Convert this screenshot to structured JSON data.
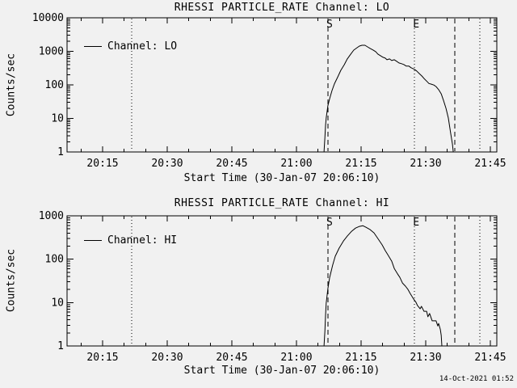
{
  "window": {
    "description": "RHESSI particle rate quicklook plot, two stacked log-scale time series panels"
  },
  "colors": {
    "background": "#f1f1f1",
    "foreground": "#000000"
  },
  "footer": {
    "timestamp": "14-Oct-2021 01:52"
  },
  "chart_data": [
    {
      "type": "line",
      "title": "RHESSI PARTICLE_RATE Channel: LO",
      "legend_label": "Channel: LO",
      "xlabel": "Start Time (30-Jan-07 20:06:10)",
      "ylabel": "Counts/sec",
      "x_unit": "minutes after 20:00 UT",
      "x_range": [
        6.75,
        106.5
      ],
      "y_range": [
        1,
        10000
      ],
      "y_scale": "log",
      "grid": false,
      "x_minor_step": 5,
      "x_ticks": [
        {
          "t": 15,
          "label": "20:15"
        },
        {
          "t": 30,
          "label": "20:30"
        },
        {
          "t": 45,
          "label": "20:45"
        },
        {
          "t": 60,
          "label": "21:00"
        },
        {
          "t": 75,
          "label": "21:15"
        },
        {
          "t": 90,
          "label": "21:30"
        },
        {
          "t": 105,
          "label": "21:45"
        }
      ],
      "y_tick_labels": [
        "1",
        "10",
        "100",
        "1000",
        "10000"
      ],
      "events": [
        {
          "t": 21.75,
          "style": "dotted",
          "label": ""
        },
        {
          "t": 67.3,
          "style": "dashed",
          "label": "S"
        },
        {
          "t": 87.4,
          "style": "dotted",
          "label": "E"
        },
        {
          "t": 96.75,
          "style": "dashed",
          "label": ""
        },
        {
          "t": 102.6,
          "style": "dotted",
          "label": ""
        }
      ],
      "series": [
        {
          "name": "Channel: LO",
          "points": [
            [
              66.4,
              1
            ],
            [
              66.6,
              2.7
            ],
            [
              66.75,
              6.2
            ],
            [
              66.9,
              10.3
            ],
            [
              67.1,
              16
            ],
            [
              67.3,
              24
            ],
            [
              67.7,
              39
            ],
            [
              68.25,
              68
            ],
            [
              68.8,
              106
            ],
            [
              69.6,
              174
            ],
            [
              70.3,
              272
            ],
            [
              71.1,
              400
            ],
            [
              71.8,
              593
            ],
            [
              72.6,
              826
            ],
            [
              73.3,
              1088
            ],
            [
              74.1,
              1290
            ],
            [
              74.6,
              1437
            ],
            [
              75.2,
              1518
            ],
            [
              75.9,
              1518
            ],
            [
              76.5,
              1360
            ],
            [
              77.1,
              1220
            ],
            [
              77.8,
              1090
            ],
            [
              78.4,
              980
            ],
            [
              78.9,
              826
            ],
            [
              79.5,
              740
            ],
            [
              80.1,
              663
            ],
            [
              80.6,
              627
            ],
            [
              81.0,
              563
            ],
            [
              81.6,
              595
            ],
            [
              82.1,
              531
            ],
            [
              82.7,
              563
            ],
            [
              83.25,
              504
            ],
            [
              83.8,
              451
            ],
            [
              84.4,
              427
            ],
            [
              84.9,
              404
            ],
            [
              85.5,
              362
            ],
            [
              86.1,
              362
            ],
            [
              86.6,
              324
            ],
            [
              87.4,
              290
            ],
            [
              87.9,
              259
            ],
            [
              88.5,
              218
            ],
            [
              89.1,
              184
            ],
            [
              89.6,
              155
            ],
            [
              90.2,
              130
            ],
            [
              90.75,
              110
            ],
            [
              91.3,
              105
            ],
            [
              91.9,
              99
            ],
            [
              92.4,
              89
            ],
            [
              93.0,
              72
            ],
            [
              93.6,
              54
            ],
            [
              94.1,
              35
            ],
            [
              94.7,
              20
            ],
            [
              95.25,
              10.3
            ],
            [
              95.8,
              3.6
            ],
            [
              96.2,
              1.7
            ],
            [
              96.4,
              1
            ]
          ]
        }
      ]
    },
    {
      "type": "line",
      "title": "RHESSI PARTICLE_RATE Channel: HI",
      "legend_label": "Channel: HI",
      "xlabel": "Start Time (30-Jan-07 20:06:10)",
      "ylabel": "Counts/sec",
      "x_unit": "minutes after 20:00 UT",
      "x_range": [
        6.75,
        106.5
      ],
      "y_range": [
        1,
        1000
      ],
      "y_scale": "log",
      "grid": false,
      "x_minor_step": 5,
      "x_ticks": [
        {
          "t": 15,
          "label": "20:15"
        },
        {
          "t": 30,
          "label": "20:30"
        },
        {
          "t": 45,
          "label": "20:45"
        },
        {
          "t": 60,
          "label": "21:00"
        },
        {
          "t": 75,
          "label": "21:15"
        },
        {
          "t": 90,
          "label": "21:30"
        },
        {
          "t": 105,
          "label": "21:45"
        }
      ],
      "y_tick_labels": [
        "1",
        "10",
        "100",
        "1000"
      ],
      "events": [
        {
          "t": 21.75,
          "style": "dotted",
          "label": ""
        },
        {
          "t": 67.3,
          "style": "dashed",
          "label": "S"
        },
        {
          "t": 87.4,
          "style": "dotted",
          "label": "E"
        },
        {
          "t": 96.75,
          "style": "dashed",
          "label": ""
        },
        {
          "t": 102.6,
          "style": "dotted",
          "label": ""
        }
      ],
      "series": [
        {
          "name": "Channel: HI",
          "points": [
            [
              66.4,
              1
            ],
            [
              66.6,
              2.2
            ],
            [
              66.75,
              5.1
            ],
            [
              66.9,
              9.7
            ],
            [
              67.3,
              21
            ],
            [
              67.7,
              38
            ],
            [
              68.4,
              73
            ],
            [
              69.0,
              117
            ],
            [
              69.9,
              180
            ],
            [
              70.9,
              262
            ],
            [
              71.8,
              340
            ],
            [
              72.8,
              440
            ],
            [
              73.7,
              520
            ],
            [
              74.6,
              570
            ],
            [
              75.4,
              593
            ],
            [
              76.1,
              545
            ],
            [
              77.1,
              480
            ],
            [
              78.0,
              405
            ],
            [
              78.9,
              300
            ],
            [
              79.9,
              213
            ],
            [
              80.6,
              158
            ],
            [
              81.2,
              127
            ],
            [
              82.1,
              90
            ],
            [
              82.7,
              61
            ],
            [
              83.4,
              47
            ],
            [
              84.0,
              38
            ],
            [
              84.6,
              28.3
            ],
            [
              85.3,
              23.9
            ],
            [
              85.9,
              20
            ],
            [
              86.4,
              16.2
            ],
            [
              87.2,
              12
            ],
            [
              87.75,
              10.1
            ],
            [
              88.1,
              8.5
            ],
            [
              88.7,
              7.2
            ],
            [
              89.0,
              8.2
            ],
            [
              89.6,
              6.3
            ],
            [
              90.2,
              6.3
            ],
            [
              90.5,
              4.7
            ],
            [
              90.9,
              5.6
            ],
            [
              91.5,
              3.8
            ],
            [
              92.4,
              3.8
            ],
            [
              92.8,
              2.9
            ],
            [
              93.0,
              3.3
            ],
            [
              93.4,
              2.4
            ],
            [
              93.6,
              1.75
            ],
            [
              93.75,
              1
            ]
          ]
        }
      ]
    }
  ]
}
